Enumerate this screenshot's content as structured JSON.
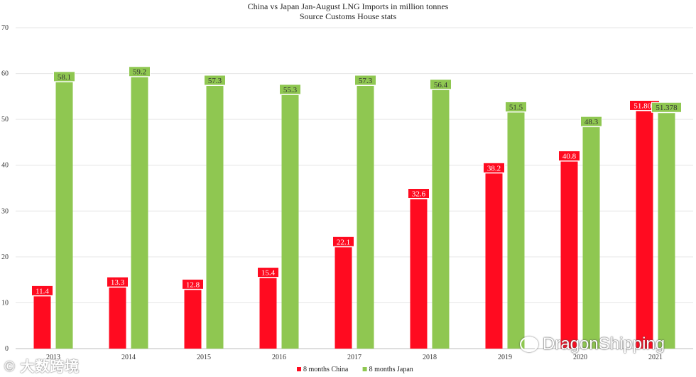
{
  "chart_data": {
    "type": "bar",
    "title": "China vs Japan Jan-August LNG Imports in million tonnes",
    "subtitle": "Source Customs House stats",
    "categories": [
      "2013",
      "2014",
      "2015",
      "2016",
      "2017",
      "2018",
      "2019",
      "2020",
      "2021"
    ],
    "series": [
      {
        "name": "8 months China",
        "color": "#ff0b20",
        "values": [
          11.4,
          13.3,
          12.8,
          15.4,
          22.1,
          32.6,
          38.2,
          40.8,
          51.809
        ],
        "labels": [
          "11.4",
          "13.3",
          "12.8",
          "15.4",
          "22.1",
          "32.6",
          "38.2",
          "40.8",
          "51.809"
        ]
      },
      {
        "name": "8 months Japan",
        "color": "#8fc751",
        "values": [
          58.1,
          59.2,
          57.3,
          55.3,
          57.3,
          56.4,
          51.5,
          48.3,
          51.378
        ],
        "labels": [
          "58.1",
          "59.2",
          "57.3",
          "55.3",
          "57.3",
          "56.4",
          "51.5",
          "48.3",
          "51.378"
        ]
      }
    ],
    "ylim": [
      0,
      70
    ],
    "yticks": [
      "0",
      "10",
      "20",
      "30",
      "40",
      "50",
      "60",
      "70"
    ],
    "grid": true,
    "legend_position": "bottom"
  },
  "watermark": {
    "left_text": "大数跨境",
    "right_text": "DragonShipping"
  }
}
